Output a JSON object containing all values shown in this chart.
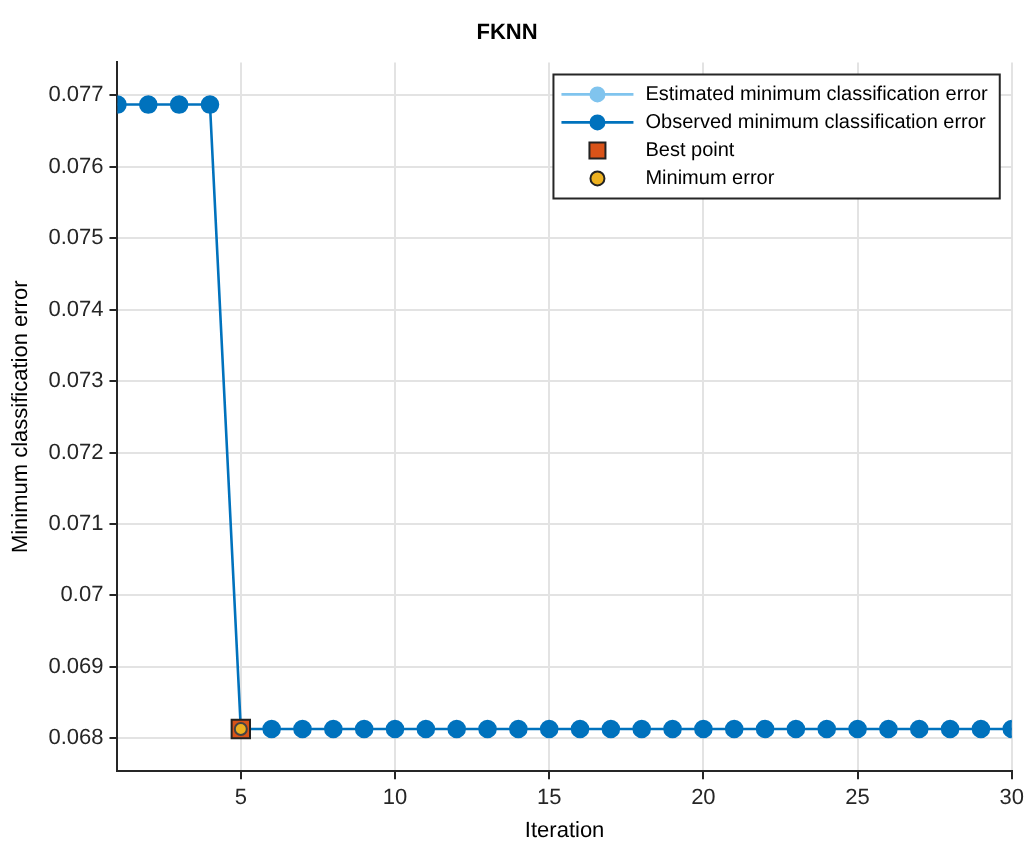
{
  "chart_data": {
    "type": "line",
    "title": "FKNN",
    "xlabel": "Iteration",
    "ylabel": "Minimum classification error",
    "x": [
      1,
      2,
      3,
      4,
      5,
      6,
      7,
      8,
      9,
      10,
      11,
      12,
      13,
      14,
      15,
      16,
      17,
      18,
      19,
      20,
      21,
      22,
      23,
      24,
      25,
      26,
      27,
      28,
      29,
      30
    ],
    "series": [
      {
        "name": "Estimated minimum classification error",
        "color": "#80c4ee",
        "values": [
          null,
          null,
          null,
          null,
          null,
          null,
          null,
          null,
          null,
          null,
          null,
          null,
          null,
          null,
          null,
          null,
          null,
          null,
          null,
          null,
          null,
          null,
          null,
          null,
          null,
          null,
          null,
          null,
          null,
          null
        ]
      },
      {
        "name": "Observed minimum classification error",
        "color": "#0072bd",
        "values": [
          0.07687,
          0.07687,
          0.07687,
          0.07687,
          0.06813,
          0.06813,
          0.06813,
          0.06813,
          0.06813,
          0.06813,
          0.06813,
          0.06813,
          0.06813,
          0.06813,
          0.06813,
          0.06813,
          0.06813,
          0.06813,
          0.06813,
          0.06813,
          0.06813,
          0.06813,
          0.06813,
          0.06813,
          0.06813,
          0.06813,
          0.06813,
          0.06813,
          0.06813,
          0.06813
        ]
      },
      {
        "name": "Best point",
        "type": "scatter",
        "marker": "square",
        "color": "#d95319",
        "x": [
          5
        ],
        "values": [
          0.06813
        ]
      },
      {
        "name": "Minimum error",
        "type": "scatter",
        "marker": "circle",
        "color": "#edb120",
        "x": [
          5
        ],
        "values": [
          0.06813
        ]
      }
    ],
    "xlim": [
      1,
      30
    ],
    "xticks": [
      5,
      10,
      15,
      20,
      25,
      30
    ],
    "ylim": [
      0.06754,
      0.07746
    ],
    "yticks": [
      0.068,
      0.069,
      0.07,
      0.071,
      0.072,
      0.073,
      0.074,
      0.075,
      0.076,
      0.077
    ],
    "grid": true,
    "legend": "top right",
    "marker": "circle"
  }
}
